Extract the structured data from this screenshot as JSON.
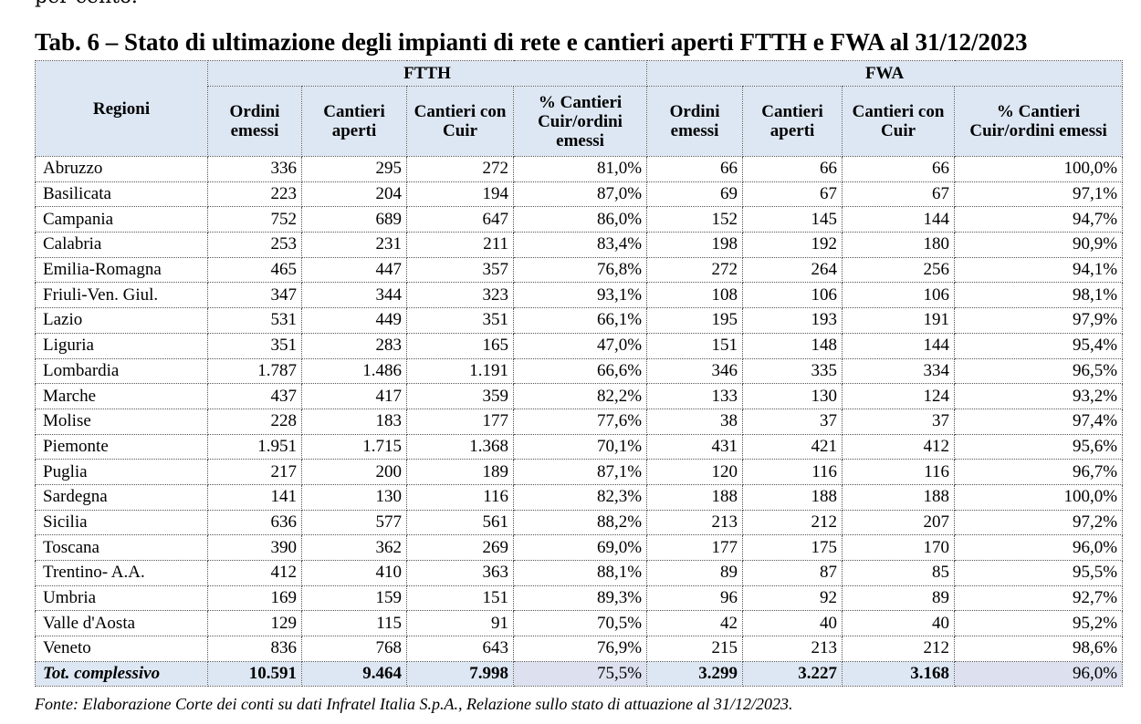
{
  "cut_line_text": "per cento.",
  "title": "Tab. 6 – Stato di ultimazione degli impianti di rete e cantieri aperti FTTH e FWA al 31/12/2023",
  "table": {
    "header_regioni": "Regioni",
    "groups": [
      "FTTH",
      "FWA"
    ],
    "subheaders": [
      "Ordini emessi",
      "Cantieri aperti",
      "Cantieri con Cuir",
      "% Cantieri Cuir/ordini emessi",
      "Ordini emessi",
      "Cantieri aperti",
      "Cantieri con Cuir",
      "% Cantieri Cuir/ordini emessi"
    ],
    "rows": [
      [
        "Abruzzo",
        "336",
        "295",
        "272",
        "81,0%",
        "66",
        "66",
        "66",
        "100,0%"
      ],
      [
        "Basilicata",
        "223",
        "204",
        "194",
        "87,0%",
        "69",
        "67",
        "67",
        "97,1%"
      ],
      [
        "Campania",
        "752",
        "689",
        "647",
        "86,0%",
        "152",
        "145",
        "144",
        "94,7%"
      ],
      [
        "Calabria",
        "253",
        "231",
        "211",
        "83,4%",
        "198",
        "192",
        "180",
        "90,9%"
      ],
      [
        "Emilia-Romagna",
        "465",
        "447",
        "357",
        "76,8%",
        "272",
        "264",
        "256",
        "94,1%"
      ],
      [
        "Friuli-Ven. Giul.",
        "347",
        "344",
        "323",
        "93,1%",
        "108",
        "106",
        "106",
        "98,1%"
      ],
      [
        "Lazio",
        "531",
        "449",
        "351",
        "66,1%",
        "195",
        "193",
        "191",
        "97,9%"
      ],
      [
        "Liguria",
        "351",
        "283",
        "165",
        "47,0%",
        "151",
        "148",
        "144",
        "95,4%"
      ],
      [
        "Lombardia",
        "1.787",
        "1.486",
        "1.191",
        "66,6%",
        "346",
        "335",
        "334",
        "96,5%"
      ],
      [
        "Marche",
        "437",
        "417",
        "359",
        "82,2%",
        "133",
        "130",
        "124",
        "93,2%"
      ],
      [
        "Molise",
        "228",
        "183",
        "177",
        "77,6%",
        "38",
        "37",
        "37",
        "97,4%"
      ],
      [
        "Piemonte",
        "1.951",
        "1.715",
        "1.368",
        "70,1%",
        "431",
        "421",
        "412",
        "95,6%"
      ],
      [
        "Puglia",
        "217",
        "200",
        "189",
        "87,1%",
        "120",
        "116",
        "116",
        "96,7%"
      ],
      [
        "Sardegna",
        "141",
        "130",
        "116",
        "82,3%",
        "188",
        "188",
        "188",
        "100,0%"
      ],
      [
        "Sicilia",
        "636",
        "577",
        "561",
        "88,2%",
        "213",
        "212",
        "207",
        "97,2%"
      ],
      [
        "Toscana",
        "390",
        "362",
        "269",
        "69,0%",
        "177",
        "175",
        "170",
        "96,0%"
      ],
      [
        "Trentino- A.A.",
        "412",
        "410",
        "363",
        "88,1%",
        "89",
        "87",
        "85",
        "95,5%"
      ],
      [
        "Umbria",
        "169",
        "159",
        "151",
        "89,3%",
        "96",
        "92",
        "89",
        "92,7%"
      ],
      [
        "Valle d'Aosta",
        "129",
        "115",
        "91",
        "70,5%",
        "42",
        "40",
        "40",
        "95,2%"
      ],
      [
        "Veneto",
        "836",
        "768",
        "643",
        "76,9%",
        "215",
        "213",
        "212",
        "98,6%"
      ]
    ],
    "total": [
      "Tot. complessivo",
      "10.591",
      "9.464",
      "7.998",
      "75,5%",
      "3.299",
      "3.227",
      "3.168",
      "96,0%"
    ]
  },
  "source": "Fonte: Elaborazione Corte dei conti su dati Infratel Italia S.p.A., Relazione sullo stato di attuazione al 31/12/2023.",
  "colors": {
    "header_bg": "#dde7f3",
    "pct_total_bg": "#dde1ef"
  }
}
